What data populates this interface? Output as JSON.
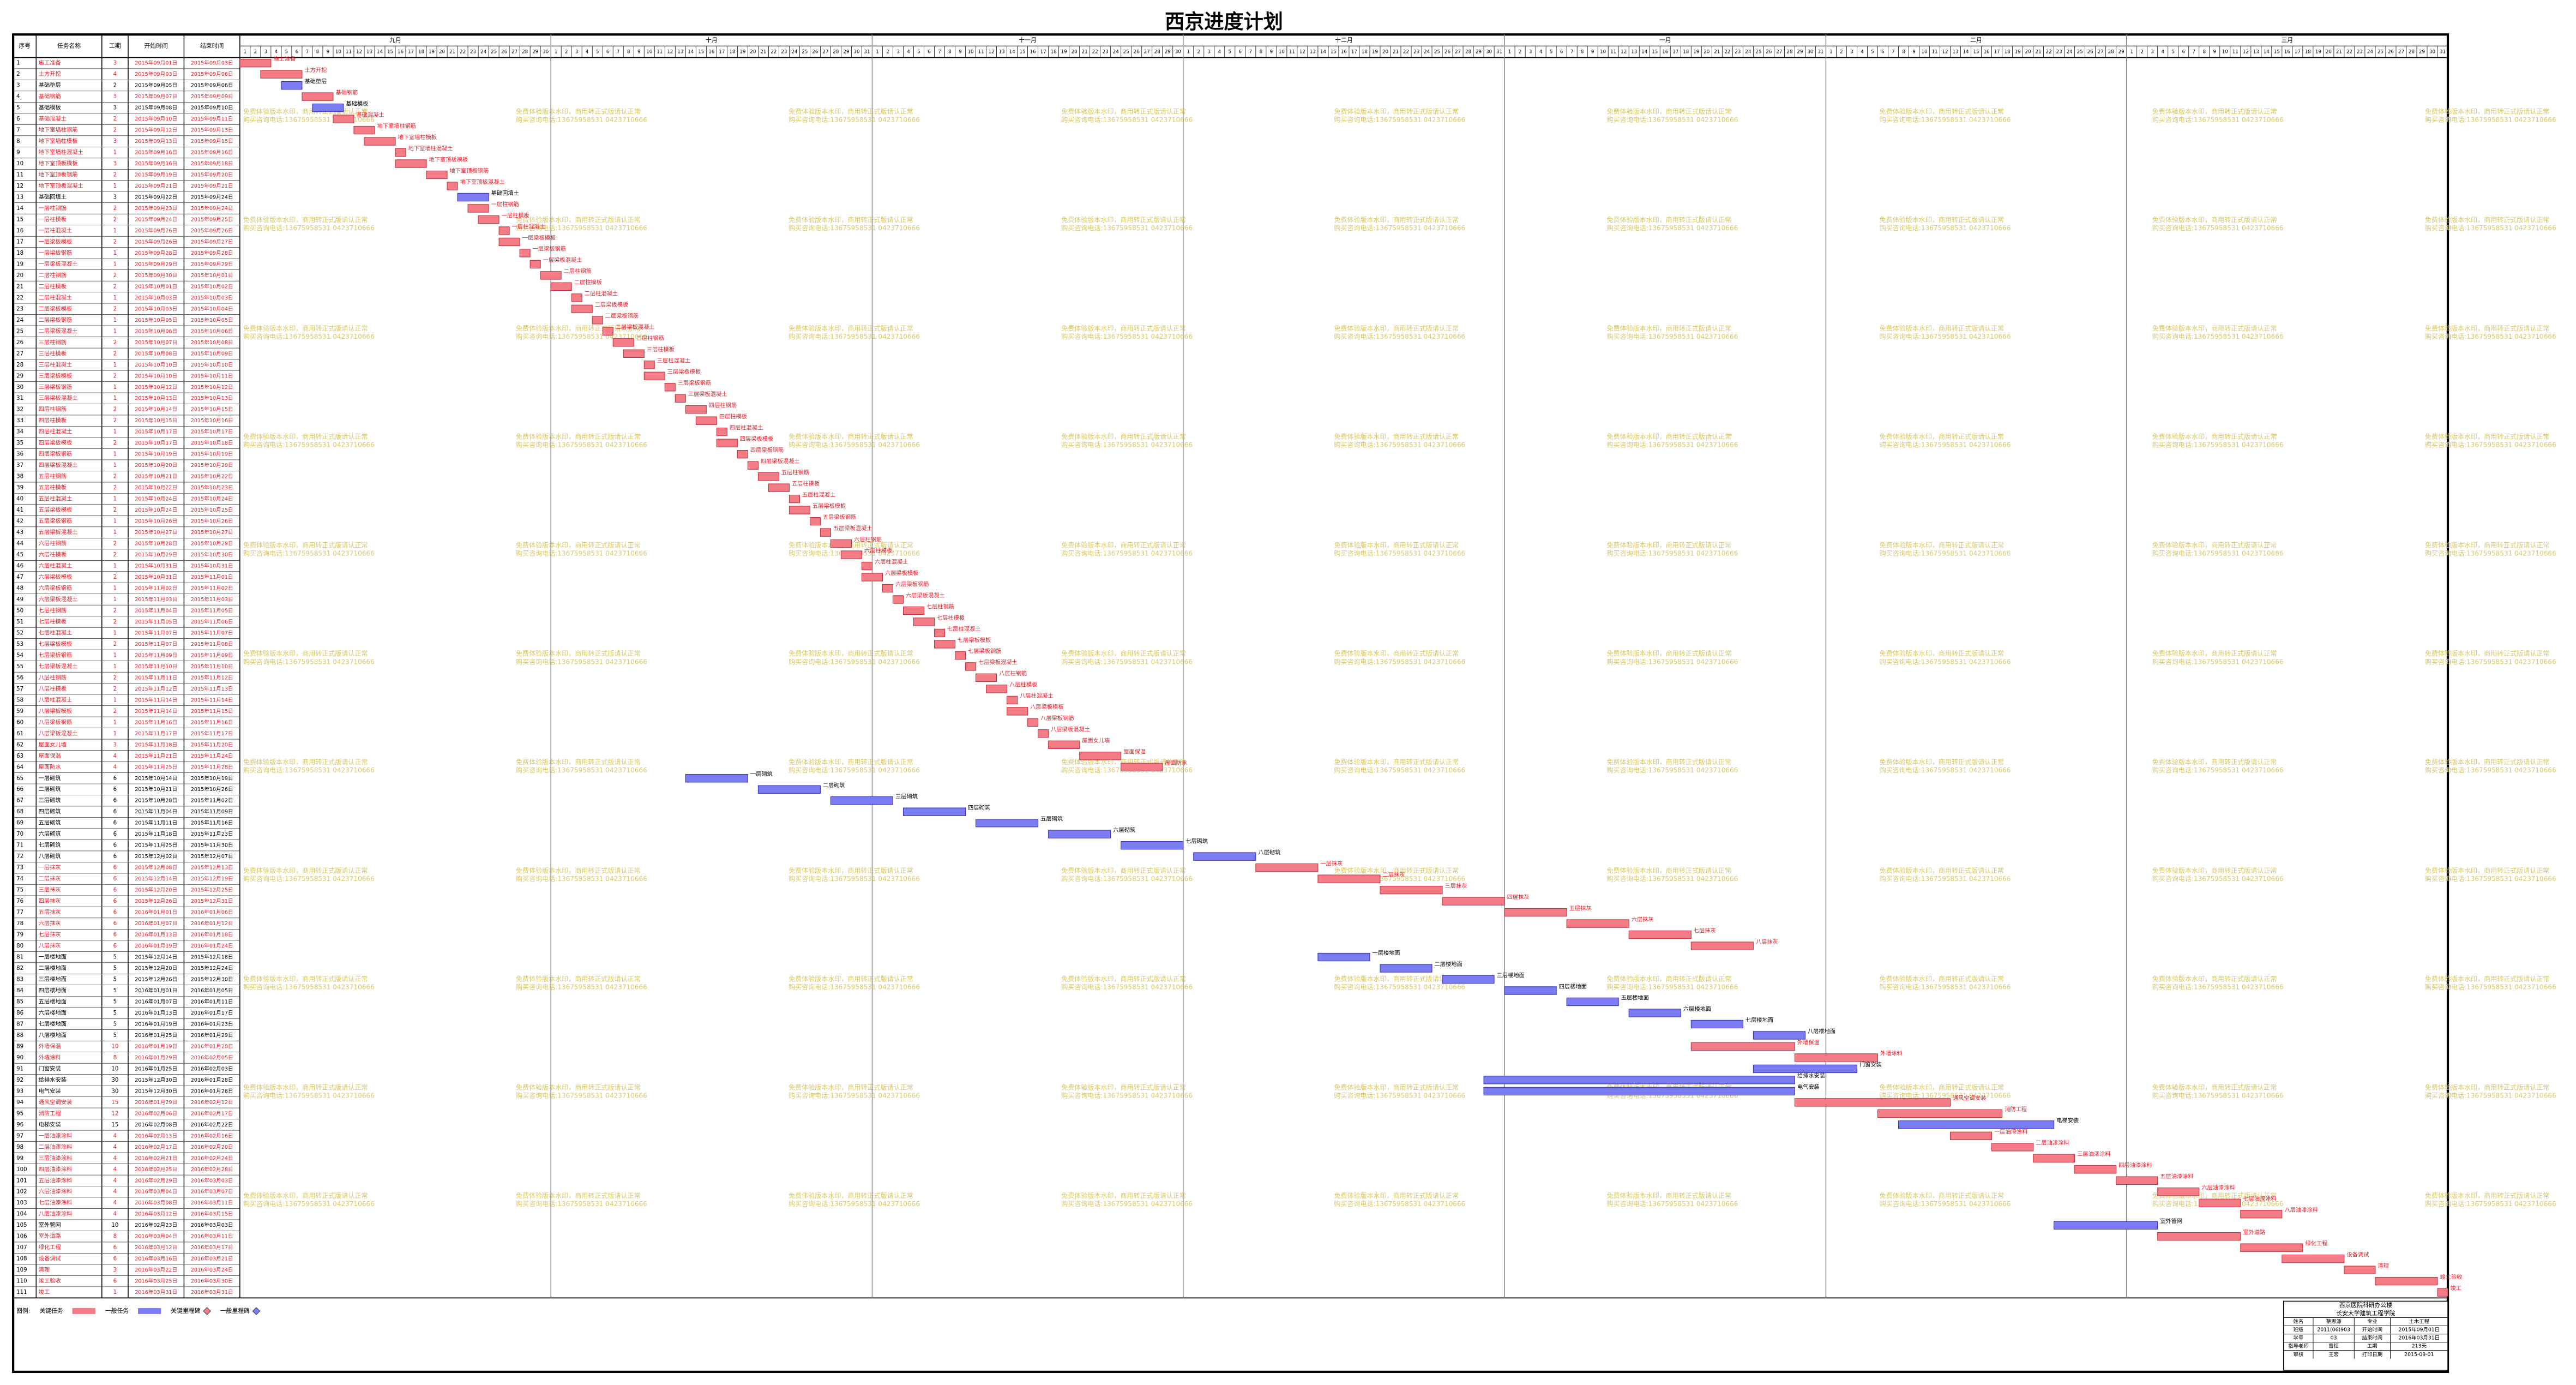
{
  "title": "西京进度计划",
  "table": {
    "columns": [
      "序号",
      "任务名称",
      "工期",
      "开始时间",
      "结束时间"
    ],
    "rows": [
      [
        1,
        "施工准备",
        3,
        "2015年09月01日",
        "2015年09月03日",
        "critical"
      ],
      [
        2,
        "土方开挖",
        4,
        "2015年09月03日",
        "2015年09月06日",
        "critical"
      ],
      [
        3,
        "基础垫层",
        2,
        "2015年09月05日",
        "2015年09月06日",
        "normal"
      ],
      [
        4,
        "基础钢筋",
        3,
        "2015年09月07日",
        "2015年09月09日",
        "critical"
      ],
      [
        5,
        "基础模板",
        3,
        "2015年09月08日",
        "2015年09月10日",
        "normal"
      ],
      [
        6,
        "基础混凝土",
        2,
        "2015年09月10日",
        "2015年09月11日",
        "critical"
      ],
      [
        7,
        "地下室墙柱钢筋",
        2,
        "2015年09月12日",
        "2015年09月13日",
        "critical"
      ],
      [
        8,
        "地下室墙柱模板",
        3,
        "2015年09月13日",
        "2015年09月15日",
        "critical"
      ],
      [
        9,
        "地下室墙柱混凝土",
        1,
        "2015年09月16日",
        "2015年09月16日",
        "critical"
      ],
      [
        10,
        "地下室顶板模板",
        3,
        "2015年09月16日",
        "2015年09月18日",
        "critical"
      ],
      [
        11,
        "地下室顶板钢筋",
        2,
        "2015年09月19日",
        "2015年09月20日",
        "critical"
      ],
      [
        12,
        "地下室顶板混凝土",
        1,
        "2015年09月21日",
        "2015年09月21日",
        "critical"
      ],
      [
        13,
        "基础回填土",
        3,
        "2015年09月22日",
        "2015年09月24日",
        "normal"
      ],
      [
        14,
        "一层柱钢筋",
        2,
        "2015年09月23日",
        "2015年09月24日",
        "critical"
      ],
      [
        15,
        "一层柱模板",
        2,
        "2015年09月24日",
        "2015年09月25日",
        "critical"
      ],
      [
        16,
        "一层柱混凝土",
        1,
        "2015年09月26日",
        "2015年09月26日",
        "critical"
      ],
      [
        17,
        "一层梁板模板",
        2,
        "2015年09月26日",
        "2015年09月27日",
        "critical"
      ],
      [
        18,
        "一层梁板钢筋",
        1,
        "2015年09月28日",
        "2015年09月28日",
        "critical"
      ],
      [
        19,
        "一层梁板混凝土",
        1,
        "2015年09月29日",
        "2015年09月29日",
        "critical"
      ],
      [
        20,
        "二层柱钢筋",
        2,
        "2015年09月30日",
        "2015年10月01日",
        "critical"
      ],
      [
        21,
        "二层柱模板",
        2,
        "2015年10月01日",
        "2015年10月02日",
        "critical"
      ],
      [
        22,
        "二层柱混凝土",
        1,
        "2015年10月03日",
        "2015年10月03日",
        "critical"
      ],
      [
        23,
        "二层梁板模板",
        2,
        "2015年10月03日",
        "2015年10月04日",
        "critical"
      ],
      [
        24,
        "二层梁板钢筋",
        1,
        "2015年10月05日",
        "2015年10月05日",
        "critical"
      ],
      [
        25,
        "二层梁板混凝土",
        1,
        "2015年10月06日",
        "2015年10月06日",
        "critical"
      ],
      [
        26,
        "三层柱钢筋",
        2,
        "2015年10月07日",
        "2015年10月08日",
        "critical"
      ],
      [
        27,
        "三层柱模板",
        2,
        "2015年10月08日",
        "2015年10月09日",
        "critical"
      ],
      [
        28,
        "三层柱混凝土",
        1,
        "2015年10月10日",
        "2015年10月10日",
        "critical"
      ],
      [
        29,
        "三层梁板模板",
        2,
        "2015年10月10日",
        "2015年10月11日",
        "critical"
      ],
      [
        30,
        "三层梁板钢筋",
        1,
        "2015年10月12日",
        "2015年10月12日",
        "critical"
      ],
      [
        31,
        "三层梁板混凝土",
        1,
        "2015年10月13日",
        "2015年10月13日",
        "critical"
      ],
      [
        32,
        "四层柱钢筋",
        2,
        "2015年10月14日",
        "2015年10月15日",
        "critical"
      ],
      [
        33,
        "四层柱模板",
        2,
        "2015年10月15日",
        "2015年10月16日",
        "critical"
      ],
      [
        34,
        "四层柱混凝土",
        1,
        "2015年10月17日",
        "2015年10月17日",
        "critical"
      ],
      [
        35,
        "四层梁板模板",
        2,
        "2015年10月17日",
        "2015年10月18日",
        "critical"
      ],
      [
        36,
        "四层梁板钢筋",
        1,
        "2015年10月19日",
        "2015年10月19日",
        "critical"
      ],
      [
        37,
        "四层梁板混凝土",
        1,
        "2015年10月20日",
        "2015年10月20日",
        "critical"
      ],
      [
        38,
        "五层柱钢筋",
        2,
        "2015年10月21日",
        "2015年10月22日",
        "critical"
      ],
      [
        39,
        "五层柱模板",
        2,
        "2015年10月22日",
        "2015年10月23日",
        "critical"
      ],
      [
        40,
        "五层柱混凝土",
        1,
        "2015年10月24日",
        "2015年10月24日",
        "critical"
      ],
      [
        41,
        "五层梁板模板",
        2,
        "2015年10月24日",
        "2015年10月25日",
        "critical"
      ],
      [
        42,
        "五层梁板钢筋",
        1,
        "2015年10月26日",
        "2015年10月26日",
        "critical"
      ],
      [
        43,
        "五层梁板混凝土",
        1,
        "2015年10月27日",
        "2015年10月27日",
        "critical"
      ],
      [
        44,
        "六层柱钢筋",
        2,
        "2015年10月28日",
        "2015年10月29日",
        "critical"
      ],
      [
        45,
        "六层柱模板",
        2,
        "2015年10月29日",
        "2015年10月30日",
        "critical"
      ],
      [
        46,
        "六层柱混凝土",
        1,
        "2015年10月31日",
        "2015年10月31日",
        "critical"
      ],
      [
        47,
        "六层梁板模板",
        2,
        "2015年10月31日",
        "2015年11月01日",
        "critical"
      ],
      [
        48,
        "六层梁板钢筋",
        1,
        "2015年11月02日",
        "2015年11月02日",
        "critical"
      ],
      [
        49,
        "六层梁板混凝土",
        1,
        "2015年11月03日",
        "2015年11月03日",
        "critical"
      ],
      [
        50,
        "七层柱钢筋",
        2,
        "2015年11月04日",
        "2015年11月05日",
        "critical"
      ],
      [
        51,
        "七层柱模板",
        2,
        "2015年11月05日",
        "2015年11月06日",
        "critical"
      ],
      [
        52,
        "七层柱混凝土",
        1,
        "2015年11月07日",
        "2015年11月07日",
        "critical"
      ],
      [
        53,
        "七层梁板模板",
        2,
        "2015年11月07日",
        "2015年11月08日",
        "critical"
      ],
      [
        54,
        "七层梁板钢筋",
        1,
        "2015年11月09日",
        "2015年11月09日",
        "critical"
      ],
      [
        55,
        "七层梁板混凝土",
        1,
        "2015年11月10日",
        "2015年11月10日",
        "critical"
      ],
      [
        56,
        "八层柱钢筋",
        2,
        "2015年11月11日",
        "2015年11月12日",
        "critical"
      ],
      [
        57,
        "八层柱模板",
        2,
        "2015年11月12日",
        "2015年11月13日",
        "critical"
      ],
      [
        58,
        "八层柱混凝土",
        1,
        "2015年11月14日",
        "2015年11月14日",
        "critical"
      ],
      [
        59,
        "八层梁板模板",
        2,
        "2015年11月14日",
        "2015年11月15日",
        "critical"
      ],
      [
        60,
        "八层梁板钢筋",
        1,
        "2015年11月16日",
        "2015年11月16日",
        "critical"
      ],
      [
        61,
        "八层梁板混凝土",
        1,
        "2015年11月17日",
        "2015年11月17日",
        "critical"
      ],
      [
        62,
        "屋面女儿墙",
        3,
        "2015年11月18日",
        "2015年11月20日",
        "critical"
      ],
      [
        63,
        "屋面保温",
        4,
        "2015年11月21日",
        "2015年11月24日",
        "critical"
      ],
      [
        64,
        "屋面防水",
        4,
        "2015年11月25日",
        "2015年11月28日",
        "critical"
      ],
      [
        65,
        "一层砌筑",
        6,
        "2015年10月14日",
        "2015年10月19日",
        "normal"
      ],
      [
        66,
        "二层砌筑",
        6,
        "2015年10月21日",
        "2015年10月26日",
        "normal"
      ],
      [
        67,
        "三层砌筑",
        6,
        "2015年10月28日",
        "2015年11月02日",
        "normal"
      ],
      [
        68,
        "四层砌筑",
        6,
        "2015年11月04日",
        "2015年11月09日",
        "normal"
      ],
      [
        69,
        "五层砌筑",
        6,
        "2015年11月11日",
        "2015年11月16日",
        "normal"
      ],
      [
        70,
        "六层砌筑",
        6,
        "2015年11月18日",
        "2015年11月23日",
        "normal"
      ],
      [
        71,
        "七层砌筑",
        6,
        "2015年11月25日",
        "2015年11月30日",
        "normal"
      ],
      [
        72,
        "八层砌筑",
        6,
        "2015年12月02日",
        "2015年12月07日",
        "normal"
      ],
      [
        73,
        "一层抹灰",
        6,
        "2015年12月08日",
        "2015年12月13日",
        "critical"
      ],
      [
        74,
        "二层抹灰",
        6,
        "2015年12月14日",
        "2015年12月19日",
        "critical"
      ],
      [
        75,
        "三层抹灰",
        6,
        "2015年12月20日",
        "2015年12月25日",
        "critical"
      ],
      [
        76,
        "四层抹灰",
        6,
        "2015年12月26日",
        "2015年12月31日",
        "critical"
      ],
      [
        77,
        "五层抹灰",
        6,
        "2016年01月01日",
        "2016年01月06日",
        "critical"
      ],
      [
        78,
        "六层抹灰",
        6,
        "2016年01月07日",
        "2016年01月12日",
        "critical"
      ],
      [
        79,
        "七层抹灰",
        6,
        "2016年01月13日",
        "2016年01月18日",
        "critical"
      ],
      [
        80,
        "八层抹灰",
        6,
        "2016年01月19日",
        "2016年01月24日",
        "critical"
      ],
      [
        81,
        "一层楼地面",
        5,
        "2015年12月14日",
        "2015年12月18日",
        "normal"
      ],
      [
        82,
        "二层楼地面",
        5,
        "2015年12月20日",
        "2015年12月24日",
        "normal"
      ],
      [
        83,
        "三层楼地面",
        5,
        "2015年12月26日",
        "2015年12月30日",
        "normal"
      ],
      [
        84,
        "四层楼地面",
        5,
        "2016年01月01日",
        "2016年01月05日",
        "normal"
      ],
      [
        85,
        "五层楼地面",
        5,
        "2016年01月07日",
        "2016年01月11日",
        "normal"
      ],
      [
        86,
        "六层楼地面",
        5,
        "2016年01月13日",
        "2016年01月17日",
        "normal"
      ],
      [
        87,
        "七层楼地面",
        5,
        "2016年01月19日",
        "2016年01月23日",
        "normal"
      ],
      [
        88,
        "八层楼地面",
        5,
        "2016年01月25日",
        "2016年01月29日",
        "normal"
      ],
      [
        89,
        "外墙保温",
        10,
        "2016年01月19日",
        "2016年01月28日",
        "critical"
      ],
      [
        90,
        "外墙涂料",
        8,
        "2016年01月29日",
        "2016年02月05日",
        "critical"
      ],
      [
        91,
        "门窗安装",
        10,
        "2016年01月25日",
        "2016年02月03日",
        "normal"
      ],
      [
        92,
        "给排水安装",
        30,
        "2015年12月30日",
        "2016年01月28日",
        "normal"
      ],
      [
        93,
        "电气安装",
        30,
        "2015年12月30日",
        "2016年01月28日",
        "normal"
      ],
      [
        94,
        "通风空调安装",
        15,
        "2016年01月29日",
        "2016年02月12日",
        "critical"
      ],
      [
        95,
        "消防工程",
        12,
        "2016年02月06日",
        "2016年02月17日",
        "critical"
      ],
      [
        96,
        "电梯安装",
        15,
        "2016年02月08日",
        "2016年02月22日",
        "normal"
      ],
      [
        97,
        "一层油漆涂料",
        4,
        "2016年02月13日",
        "2016年02月16日",
        "critical"
      ],
      [
        98,
        "二层油漆涂料",
        4,
        "2016年02月17日",
        "2016年02月20日",
        "critical"
      ],
      [
        99,
        "三层油漆涂料",
        4,
        "2016年02月21日",
        "2016年02月24日",
        "critical"
      ],
      [
        100,
        "四层油漆涂料",
        4,
        "2016年02月25日",
        "2016年02月28日",
        "critical"
      ],
      [
        101,
        "五层油漆涂料",
        4,
        "2016年02月29日",
        "2016年03月03日",
        "critical"
      ],
      [
        102,
        "六层油漆涂料",
        4,
        "2016年03月04日",
        "2016年03月07日",
        "critical"
      ],
      [
        103,
        "七层油漆涂料",
        4,
        "2016年03月08日",
        "2016年03月11日",
        "critical"
      ],
      [
        104,
        "八层油漆涂料",
        4,
        "2016年03月12日",
        "2016年03月15日",
        "critical"
      ],
      [
        105,
        "室外管网",
        10,
        "2016年02月23日",
        "2016年03月03日",
        "normal"
      ],
      [
        106,
        "室外道路",
        8,
        "2016年03月04日",
        "2016年03月11日",
        "critical"
      ],
      [
        107,
        "绿化工程",
        6,
        "2016年03月12日",
        "2016年03月17日",
        "critical"
      ],
      [
        108,
        "设备调试",
        6,
        "2016年03月16日",
        "2016年03月21日",
        "critical"
      ],
      [
        109,
        "清理",
        3,
        "2016年03月22日",
        "2016年03月24日",
        "critical"
      ],
      [
        110,
        "竣工验收",
        6,
        "2016年03月25日",
        "2016年03月30日",
        "critical"
      ],
      [
        111,
        "竣工",
        1,
        "2016年03月31日",
        "2016年03月31日",
        "critical"
      ]
    ]
  },
  "timeline": [
    {
      "month": "九月",
      "days": [
        1,
        2,
        3,
        4,
        5,
        6,
        7,
        8,
        9,
        10,
        11,
        12,
        13,
        14,
        15,
        16,
        17,
        18,
        19,
        20,
        21,
        22,
        23,
        24,
        25,
        26,
        27,
        28,
        29,
        30
      ]
    },
    {
      "month": "十月",
      "days": [
        1,
        2,
        3,
        4,
        5,
        6,
        7,
        8,
        9,
        10,
        11,
        12,
        13,
        14,
        15,
        16,
        17,
        18,
        19,
        20,
        21,
        22,
        23,
        24,
        25,
        26,
        27,
        28,
        29,
        30,
        31
      ]
    },
    {
      "month": "十一月",
      "days": [
        1,
        2,
        3,
        4,
        5,
        6,
        7,
        8,
        9,
        10,
        11,
        12,
        13,
        14,
        15,
        16,
        17,
        18,
        19,
        20,
        21,
        22,
        23,
        24,
        25,
        26,
        27,
        28,
        29,
        30
      ]
    },
    {
      "month": "十二月",
      "days": [
        1,
        2,
        3,
        4,
        5,
        6,
        7,
        8,
        9,
        10,
        11,
        12,
        13,
        14,
        15,
        16,
        17,
        18,
        19,
        20,
        21,
        22,
        23,
        24,
        25,
        26,
        27,
        28,
        29,
        30,
        31
      ]
    },
    {
      "month": "一月",
      "days": [
        1,
        2,
        3,
        4,
        5,
        6,
        7,
        8,
        9,
        10,
        11,
        12,
        13,
        14,
        15,
        16,
        17,
        18,
        19,
        20,
        21,
        22,
        23,
        24,
        25,
        26,
        27,
        28,
        29,
        30,
        31
      ]
    },
    {
      "month": "二月",
      "days": [
        1,
        2,
        3,
        4,
        5,
        6,
        7,
        8,
        9,
        10,
        11,
        12,
        13,
        14,
        15,
        16,
        17,
        18,
        19,
        20,
        21,
        22,
        23,
        24,
        25,
        26,
        27,
        28,
        29
      ]
    },
    {
      "month": "三月",
      "days": [
        1,
        2,
        3,
        4,
        5,
        6,
        7,
        8,
        9,
        10,
        11,
        12,
        13,
        14,
        15,
        16,
        17,
        18,
        19,
        20,
        21,
        22,
        23,
        24,
        25,
        26,
        27,
        28,
        29,
        30,
        31
      ]
    }
  ],
  "colors": {
    "critical": "#f47c86",
    "normal": "#7c7cf2"
  },
  "watermark": [
    "免费体验版本水印，商用转正式版请认正常",
    "购买咨询电话:13675958531 0423710666"
  ],
  "legend": {
    "label": "图例:",
    "items": [
      {
        "name": "关键任务",
        "kind": "critical",
        "shape": "bar"
      },
      {
        "name": "一般任务",
        "kind": "normal",
        "shape": "bar"
      },
      {
        "name": "关键里程碑",
        "kind": "critical",
        "shape": "diamond"
      },
      {
        "name": "一般里程碑",
        "kind": "normal",
        "shape": "diamond"
      }
    ]
  },
  "info": {
    "title": "西京医院科研办公楼",
    "subtitle": "长安大学建筑工程学院",
    "rows": [
      [
        "姓名",
        "蔡思源",
        "专业",
        "土木工程"
      ],
      [
        "班级",
        "2011(06)903",
        "开始时间",
        "2015年09月01日"
      ],
      [
        "学号",
        "03",
        "结束时间",
        "2016年03月31日"
      ],
      [
        "指导老师",
        "雷恒",
        "工期",
        "213天"
      ],
      [
        "审核",
        "王宏",
        "打印日期",
        "2015-09-01"
      ]
    ]
  }
}
